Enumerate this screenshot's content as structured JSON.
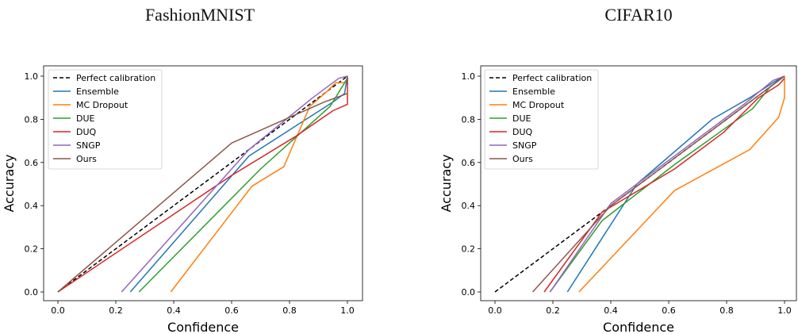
{
  "panels": [
    {
      "title": "FashionMNIST"
    },
    {
      "title": "CIFAR10"
    }
  ],
  "chart_data": [
    {
      "type": "line",
      "title": "FashionMNIST",
      "xlabel": "Confidence",
      "ylabel": "Accuracy",
      "xlim": [
        0.0,
        1.0
      ],
      "ylim": [
        0.0,
        1.0
      ],
      "x_ticks": [
        "0.0",
        "0.2",
        "0.4",
        "0.6",
        "0.8",
        "1.0"
      ],
      "y_ticks": [
        "0.0",
        "0.2",
        "0.4",
        "0.6",
        "0.8",
        "1.0"
      ],
      "grid": false,
      "legend_position": "top-left",
      "series": [
        {
          "name": "Perfect calibration",
          "color": "#000000",
          "dashed": true,
          "points": [
            [
              0.0,
              0.0
            ],
            [
              1.0,
              1.0
            ]
          ]
        },
        {
          "name": "Ensemble",
          "color": "#1f77b4",
          "points": [
            [
              0.25,
              0.0
            ],
            [
              0.66,
              0.63
            ],
            [
              0.95,
              0.88
            ],
            [
              0.99,
              0.92
            ],
            [
              1.0,
              1.0
            ],
            [
              1.0,
              0.96
            ]
          ]
        },
        {
          "name": "MC Dropout",
          "color": "#ff7f0e",
          "points": [
            [
              0.39,
              0.0
            ],
            [
              0.67,
              0.49
            ],
            [
              0.78,
              0.58
            ],
            [
              0.87,
              0.86
            ],
            [
              0.93,
              0.93
            ],
            [
              0.96,
              0.97
            ],
            [
              0.99,
              0.97
            ],
            [
              1.0,
              0.99
            ]
          ]
        },
        {
          "name": "DUE",
          "color": "#2ca02c",
          "points": [
            [
              0.28,
              0.0
            ],
            [
              0.7,
              0.57
            ],
            [
              0.94,
              0.86
            ],
            [
              1.0,
              0.99
            ]
          ]
        },
        {
          "name": "DUQ",
          "color": "#d62728",
          "points": [
            [
              0.0,
              0.0
            ],
            [
              0.6,
              0.54
            ],
            [
              0.82,
              0.72
            ],
            [
              0.95,
              0.84
            ],
            [
              1.0,
              0.87
            ],
            [
              1.0,
              0.99
            ]
          ]
        },
        {
          "name": "SNGP",
          "color": "#9467bd",
          "points": [
            [
              0.22,
              0.0
            ],
            [
              0.66,
              0.66
            ],
            [
              0.88,
              0.9
            ],
            [
              0.97,
              0.99
            ],
            [
              1.0,
              1.0
            ]
          ]
        },
        {
          "name": "Ours",
          "color": "#8c564b",
          "points": [
            [
              0.0,
              0.0
            ],
            [
              0.6,
              0.69
            ],
            [
              0.92,
              0.88
            ],
            [
              1.0,
              0.92
            ]
          ]
        }
      ]
    },
    {
      "type": "line",
      "title": "CIFAR10",
      "xlabel": "Confidence",
      "ylabel": "Accuracy",
      "xlim": [
        0.0,
        1.0
      ],
      "ylim": [
        0.0,
        1.0
      ],
      "x_ticks": [
        "0.0",
        "0.2",
        "0.4",
        "0.6",
        "0.8",
        "1.0"
      ],
      "y_ticks": [
        "0.0",
        "0.2",
        "0.4",
        "0.6",
        "0.8",
        "1.0"
      ],
      "grid": false,
      "legend_position": "top-left",
      "series": [
        {
          "name": "Perfect calibration",
          "color": "#000000",
          "dashed": true,
          "points": [
            [
              0.0,
              0.0
            ],
            [
              1.0,
              1.0
            ]
          ]
        },
        {
          "name": "Ensemble",
          "color": "#1f77b4",
          "points": [
            [
              0.25,
              0.0
            ],
            [
              0.49,
              0.5
            ],
            [
              0.75,
              0.8
            ],
            [
              0.88,
              0.9
            ],
            [
              0.96,
              0.97
            ],
            [
              1.0,
              1.0
            ]
          ]
        },
        {
          "name": "MC Dropout",
          "color": "#ff7f0e",
          "points": [
            [
              0.29,
              0.0
            ],
            [
              0.62,
              0.47
            ],
            [
              0.88,
              0.66
            ],
            [
              0.98,
              0.81
            ],
            [
              1.0,
              0.9
            ],
            [
              1.0,
              1.0
            ]
          ]
        },
        {
          "name": "DUE",
          "color": "#2ca02c",
          "points": [
            [
              0.19,
              0.0
            ],
            [
              0.37,
              0.33
            ],
            [
              0.62,
              0.59
            ],
            [
              0.89,
              0.85
            ],
            [
              0.95,
              0.95
            ],
            [
              1.0,
              1.0
            ]
          ]
        },
        {
          "name": "DUQ",
          "color": "#d62728",
          "points": [
            [
              0.17,
              0.0
            ],
            [
              0.37,
              0.37
            ],
            [
              0.62,
              0.57
            ],
            [
              0.79,
              0.74
            ],
            [
              0.91,
              0.9
            ],
            [
              0.98,
              0.96
            ],
            [
              1.0,
              0.99
            ]
          ]
        },
        {
          "name": "SNGP",
          "color": "#9467bd",
          "points": [
            [
              0.19,
              0.0
            ],
            [
              0.4,
              0.41
            ],
            [
              0.68,
              0.69
            ],
            [
              0.86,
              0.87
            ],
            [
              0.96,
              0.98
            ],
            [
              1.0,
              1.0
            ]
          ]
        },
        {
          "name": "Ours",
          "color": "#8c564b",
          "points": [
            [
              0.13,
              0.0
            ],
            [
              0.4,
              0.4
            ],
            [
              0.65,
              0.65
            ],
            [
              0.9,
              0.9
            ],
            [
              1.0,
              1.0
            ]
          ]
        }
      ]
    }
  ]
}
